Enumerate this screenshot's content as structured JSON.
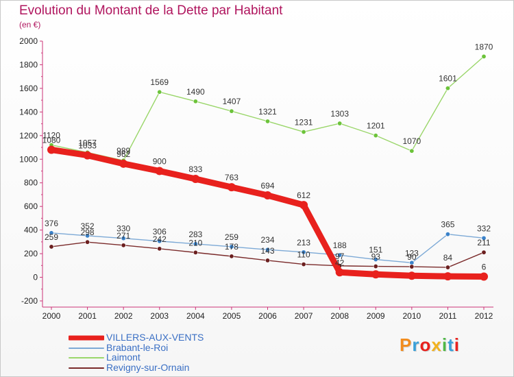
{
  "title": "Evolution du Montant de la Dette par Habitant",
  "unit_label": "(en €)",
  "logo": "Proxiti",
  "chart_data": {
    "type": "line",
    "title": "Evolution du Montant de la Dette par Habitant",
    "ylabel": "(en €)",
    "xlabel": "",
    "ylim": [
      -200,
      2000
    ],
    "y_ticks": [
      -200,
      0,
      200,
      400,
      600,
      800,
      1000,
      1200,
      1400,
      1600,
      1800,
      2000
    ],
    "categories": [
      "2000",
      "2001",
      "2002",
      "2003",
      "2004",
      "2005",
      "2006",
      "2007",
      "2008",
      "2009",
      "2010",
      "2011",
      "2012"
    ],
    "grid": false,
    "legend_position": "bottom-left",
    "series": [
      {
        "name": "VILLERS-AUX-VENTS",
        "color": "#e8211d",
        "marker_color": "#e8211d",
        "values": [
          1080,
          1033,
          962,
          900,
          833,
          763,
          694,
          612,
          42,
          25,
          13,
          8,
          6
        ],
        "labels": [
          "1080",
          "1033",
          "962",
          "900",
          "833",
          "763",
          "694",
          "612",
          "42",
          "",
          "",
          "",
          "6"
        ]
      },
      {
        "name": "Brabant-le-Roi",
        "color": "#7ca9d6",
        "marker_color": "#3b82c9",
        "values": [
          376,
          352,
          330,
          306,
          283,
          259,
          234,
          213,
          188,
          151,
          123,
          365,
          332
        ],
        "labels": [
          "376",
          "352",
          "330",
          "306",
          "283",
          "259",
          "234",
          "213",
          "188",
          "151",
          "123",
          "365",
          "332"
        ]
      },
      {
        "name": "Laimont",
        "color": "#9ad66a",
        "marker_color": "#6cc33a",
        "values": [
          1120,
          1057,
          989,
          1569,
          1490,
          1407,
          1321,
          1231,
          1303,
          1201,
          1070,
          1601,
          1870
        ],
        "labels": [
          "1120",
          "1057",
          "989",
          "1569",
          "1490",
          "1407",
          "1321",
          "1231",
          "1303",
          "1201",
          "1070",
          "1601",
          "1870"
        ]
      },
      {
        "name": "Revigny-sur-Ornain",
        "color": "#7a2a2a",
        "marker_color": "#6b1f1f",
        "values": [
          259,
          298,
          271,
          242,
          210,
          178,
          143,
          110,
          97,
          93,
          90,
          84,
          211
        ],
        "labels": [
          "259",
          "298",
          "271",
          "242",
          "210",
          "178",
          "143",
          "110",
          "97",
          "93",
          "90",
          "84",
          "211"
        ]
      }
    ]
  }
}
